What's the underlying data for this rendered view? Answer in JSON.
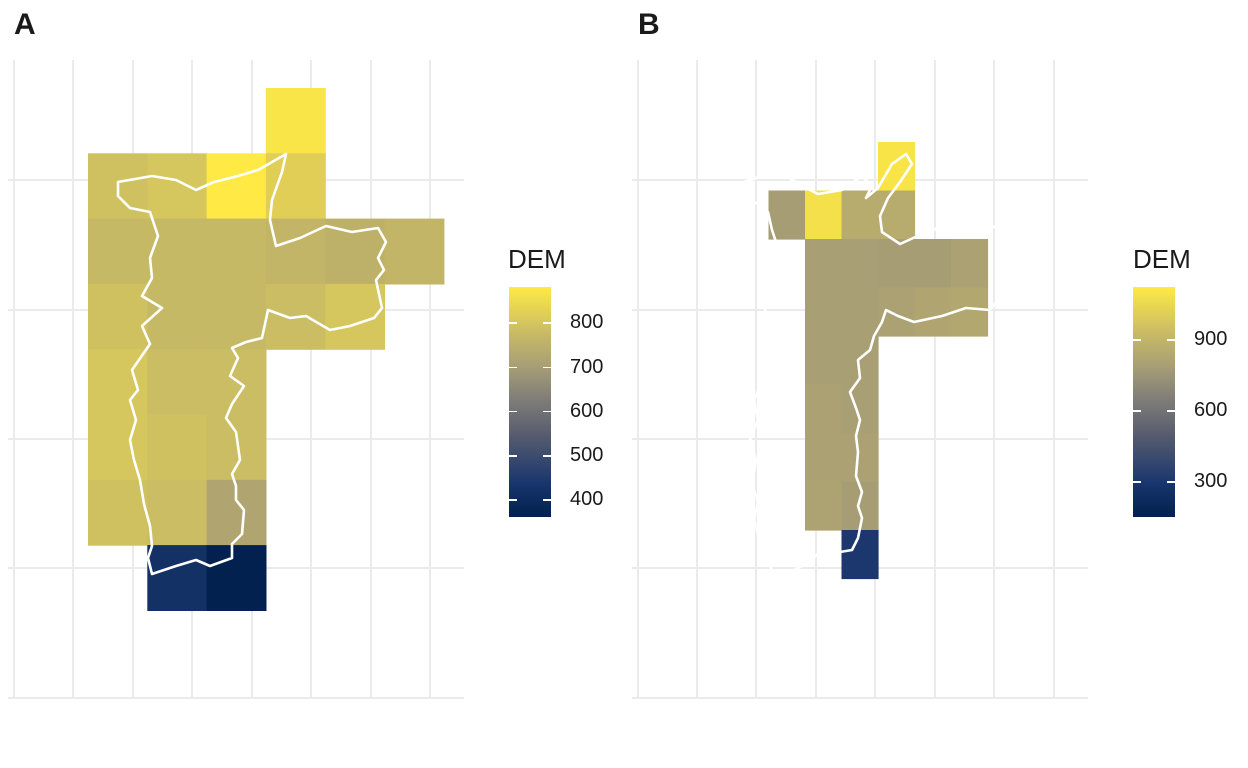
{
  "panels": [
    {
      "id": "A",
      "label": "A",
      "legend_title": "DEM",
      "legend_ticks": [
        "800",
        "700",
        "600",
        "500",
        "400"
      ],
      "colors": {
        "low": "#00204d",
        "mid": "#7c7b78",
        "high": "#ffe945",
        "outline": "#ffffff",
        "grid": "#ebebeb"
      }
    },
    {
      "id": "B",
      "label": "B",
      "legend_title": "DEM",
      "legend_ticks": [
        "900",
        "600",
        "300"
      ],
      "colors": {
        "low": "#00204d",
        "mid": "#7c7b78",
        "high": "#ffe945",
        "outline": "#ffffff",
        "grid": "#ebebeb"
      }
    }
  ],
  "chart_data": [
    {
      "type": "heatmap",
      "title": "A",
      "legend_title": "DEM",
      "color_scale": "cividis",
      "color_range": [
        360,
        880
      ],
      "legend_ticks": [
        800,
        700,
        600,
        500,
        400
      ],
      "grid": true,
      "axis_labels_visible": false,
      "raster_rows": [
        [
          null,
          null,
          null,
          870,
          null,
          null
        ],
        [
          790,
          800,
          880,
          820,
          null,
          null
        ],
        [
          770,
          770,
          770,
          760,
          750,
          760
        ],
        [
          790,
          770,
          770,
          780,
          800,
          null
        ],
        [
          800,
          780,
          780,
          null,
          null,
          null
        ],
        [
          800,
          790,
          780,
          null,
          null,
          null
        ],
        [
          790,
          780,
          720,
          null,
          null,
          null
        ],
        [
          null,
          420,
          365,
          null,
          null,
          null
        ]
      ]
    },
    {
      "type": "heatmap",
      "title": "B",
      "legend_title": "DEM",
      "color_scale": "cividis",
      "color_range": [
        150,
        1120
      ],
      "legend_ticks": [
        900,
        600,
        300
      ],
      "grid": true,
      "axis_labels_visible": false,
      "raster_rows": [
        [
          null,
          null,
          null,
          null,
          1100,
          null,
          null,
          null
        ],
        [
          null,
          780,
          1080,
          850,
          850,
          null,
          null,
          null
        ],
        [
          null,
          null,
          790,
          790,
          780,
          780,
          800,
          null
        ],
        [
          null,
          null,
          790,
          790,
          800,
          820,
          830,
          null
        ],
        [
          null,
          null,
          790,
          790,
          null,
          null,
          null,
          null
        ],
        [
          null,
          null,
          800,
          790,
          null,
          null,
          null,
          null
        ],
        [
          null,
          null,
          800,
          800,
          null,
          null,
          null,
          null
        ],
        [
          null,
          null,
          810,
          780,
          null,
          null,
          null,
          null
        ],
        [
          null,
          null,
          null,
          300,
          null,
          null,
          null,
          null
        ]
      ]
    }
  ]
}
